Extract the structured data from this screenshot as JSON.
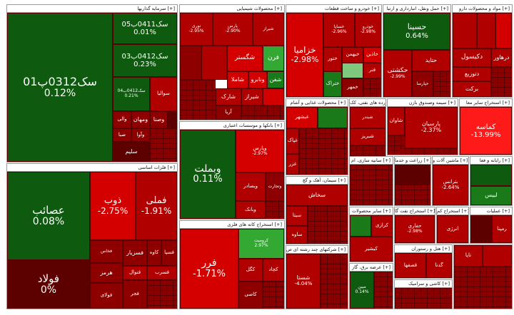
{
  "sectors": [
    {
      "id": "s1",
      "title": "سرمایه گذاریها [+]"
    },
    {
      "id": "s2",
      "title": "محصولات شیمیایی [+]"
    },
    {
      "id": "s3",
      "title": "خودرو و ساخت قطعات [+]"
    },
    {
      "id": "s4",
      "title": "حمل ونقل، انبارداری و ارتبا [+]"
    },
    {
      "id": "s5",
      "title": "مواد و محصولات دارو [+]"
    },
    {
      "id": "s6",
      "title": "فلزات اساسی [+]"
    },
    {
      "id": "s7",
      "title": "بانکها و موسسات اعتباری [+]"
    },
    {
      "id": "s8",
      "title": "استخراج کانه های فلزی [+]"
    },
    {
      "id": "s9",
      "title": "محصولات غذایی و آشام [+]"
    },
    {
      "id": "s10",
      "title": "فراورده های نفتی، کک [+]"
    },
    {
      "id": "s11",
      "title": "سیمه وصندوق بازن [+]"
    },
    {
      "id": "s12",
      "title": "استخراج سایر معا [+]"
    },
    {
      "id": "s13",
      "title": "سیمان، آهک و گچ [+]"
    },
    {
      "id": "s14",
      "title": "سانیه سازی، ام [+]"
    },
    {
      "id": "s15",
      "title": "زراعت و خدما [+]"
    },
    {
      "id": "s16",
      "title": "ماشین آلات و [+]"
    },
    {
      "id": "s17",
      "title": "رایانه و فعا [+]"
    },
    {
      "id": "s18",
      "title": "سایر محصولات [+]"
    },
    {
      "id": "s19",
      "title": "استخراج نفت گا [+]"
    },
    {
      "id": "s20",
      "title": "استخراج کم [+]"
    },
    {
      "id": "s21",
      "title": "عملیات [+]"
    },
    {
      "id": "s22",
      "title": "شرکتهای چند رشته ای ص [+]"
    },
    {
      "id": "s23",
      "title": "عرضه برق، گاز [+]"
    },
    {
      "id": "s24",
      "title": "هتل و رستوران [+]"
    },
    {
      "id": "s25",
      "title": "کاشی و سرامیک [+]"
    }
  ],
  "tiles": {
    "s1_main": {
      "name": "سک0312پ01",
      "pct": "0.12%"
    },
    "s1_a": {
      "name": "سک0411ب05",
      "pct": "0.01%"
    },
    "s1_b": {
      "name": "سک0412ب03",
      "pct": "0.23%"
    },
    "s1_c": {
      "name": "سک0412ب04",
      "pct": "0.21%"
    },
    "s1_d": {
      "name": "وصنا"
    },
    "s1_e": {
      "name": "ومهان"
    },
    "s1_f": {
      "name": "والبر"
    },
    "s1_g": {
      "name": "صبا"
    },
    "s1_h": {
      "name": "سلیم"
    },
    "s1_i": {
      "name": "وآوا"
    },
    "s1_j": {
      "name": "والی"
    },
    "s1_k": {
      "name": "سوالیا"
    },
    "s2_a": {
      "name": "نوری",
      "pct": "-2.95%"
    },
    "s2_b": {
      "name": "پارس",
      "pct": "-2.90%"
    },
    "s2_c": {
      "name": "شیراز"
    },
    "s2_d": {
      "name": "شگستر"
    },
    "s2_e": {
      "name": "فرن"
    },
    "s2_f": {
      "name": "شاملا"
    },
    "s2_g": {
      "name": "شفن"
    },
    "s2_h": {
      "name": "ونابرو"
    },
    "s2_i": {
      "name": "شارک"
    },
    "s2_j": {
      "name": "شیراز"
    },
    "s2_k": {
      "name": "آریا"
    },
    "s3_main": {
      "name": "خزامیا",
      "pct": "-2.98%"
    },
    "s3_a": {
      "name": "خساپا",
      "pct": "-2.96%"
    },
    "s3_b": {
      "name": "خودرو",
      "pct": "-2.98%"
    },
    "s3_c": {
      "name": "خاذین"
    },
    "s3_d": {
      "name": "خبهمن"
    },
    "s3_e": {
      "name": "ختور"
    },
    "s3_f": {
      "name": "خمهر"
    },
    "s3_g": {
      "name": "ختراک"
    },
    "s3_h": {
      "name": "فنر"
    },
    "s4_main": {
      "name": "حسینا",
      "pct": "0.64%"
    },
    "s4_a": {
      "name": "حکشتی",
      "pct": "-2.99%"
    },
    "s4_b": {
      "name": "حتاید"
    },
    "s4_c": {
      "name": "حپارسا"
    },
    "s5_a": {
      "name": "دکیسول"
    },
    "s5_b": {
      "name": "دتوزیع"
    },
    "s5_c": {
      "name": "درهاور"
    },
    "s5_d": {
      "name": "برکت"
    },
    "s6_a": {
      "name": "عصائب",
      "pct": "0.08%"
    },
    "s6_b": {
      "name": "فولاد",
      "pct": "0%"
    },
    "s6_c": {
      "name": "ذوب",
      "pct": "-2.75%"
    },
    "s6_d": {
      "name": "فملی",
      "pct": "-1.91%"
    },
    "s6_e": {
      "name": "فخاس"
    },
    "s6_f": {
      "name": "کاوه"
    },
    "s6_g": {
      "name": "فسپا"
    },
    "s6_h": {
      "name": "فسرب"
    },
    "s6_i": {
      "name": "فجر"
    },
    "s6_j": {
      "name": "فسزیار"
    },
    "s6_k": {
      "name": "هرمز"
    },
    "s6_l": {
      "name": "فنوال"
    },
    "s6_m": {
      "name": "فولای"
    },
    "s7_main": {
      "name": "وبملت",
      "pct": "0.11%"
    },
    "s7_a": {
      "name": "وپارس",
      "pct": "-2.97%"
    },
    "s7_b": {
      "name": "وبصادر"
    },
    "s7_c": {
      "name": "وتجارت"
    },
    "s7_d": {
      "name": "وبانک"
    },
    "s8_main": {
      "name": "فرر",
      "pct": "-1.71%"
    },
    "s8_a": {
      "name": "کرومیت",
      "pct": "2.97%"
    },
    "s8_b": {
      "name": "کگل"
    },
    "s8_c": {
      "name": "کچاد"
    },
    "s8_d": {
      "name": "کنارس"
    },
    "s8_e": {
      "name": "کاصی"
    },
    "s9_a": {
      "name": "غبشهر"
    },
    "s9_b": {
      "name": "غپاک"
    },
    "s9_c": {
      "name": "غشاد"
    },
    "s9_d": {
      "name": "غگل"
    },
    "s9_e": {
      "name": "غزر"
    },
    "s10_a": {
      "name": "شبندر"
    },
    "s10_b": {
      "name": "شبریز"
    },
    "s10_c": {
      "name": "شاوان"
    },
    "s10_d": {
      "name": "شپنا"
    },
    "s11_a": {
      "name": "پارسیان",
      "pct": "-2.37%"
    },
    "s12_a": {
      "name": "کماسه",
      "pct": "-13.99%"
    },
    "s13_a": {
      "name": "سخاش"
    },
    "s13_b": {
      "name": "سیتا"
    },
    "s13_c": {
      "name": "ساوه"
    },
    "s16_a": {
      "name": "بترانس",
      "pct": "-2.64%"
    },
    "s16_b": {
      "name": "لبیس"
    },
    "s18_a": {
      "name": "کرازی"
    },
    "s18_b": {
      "name": "کیشیر"
    },
    "s19_a": {
      "name": "حفاری",
      "pct": "-2.98%"
    },
    "s19_b": {
      "name": "انرژی"
    },
    "s20_a": {
      "name": "رمپنا"
    },
    "s20_b": {
      "name": "تاپا"
    },
    "s22_a": {
      "name": "شستا",
      "pct": "-4.04%"
    },
    "s22_b": {
      "name": "ونیکی"
    },
    "s23_a": {
      "name": "مبین",
      "pct": "0.14%"
    },
    "s24_a": {
      "name": "قصفها"
    },
    "s24_b": {
      "name": "گدنا"
    }
  }
}
